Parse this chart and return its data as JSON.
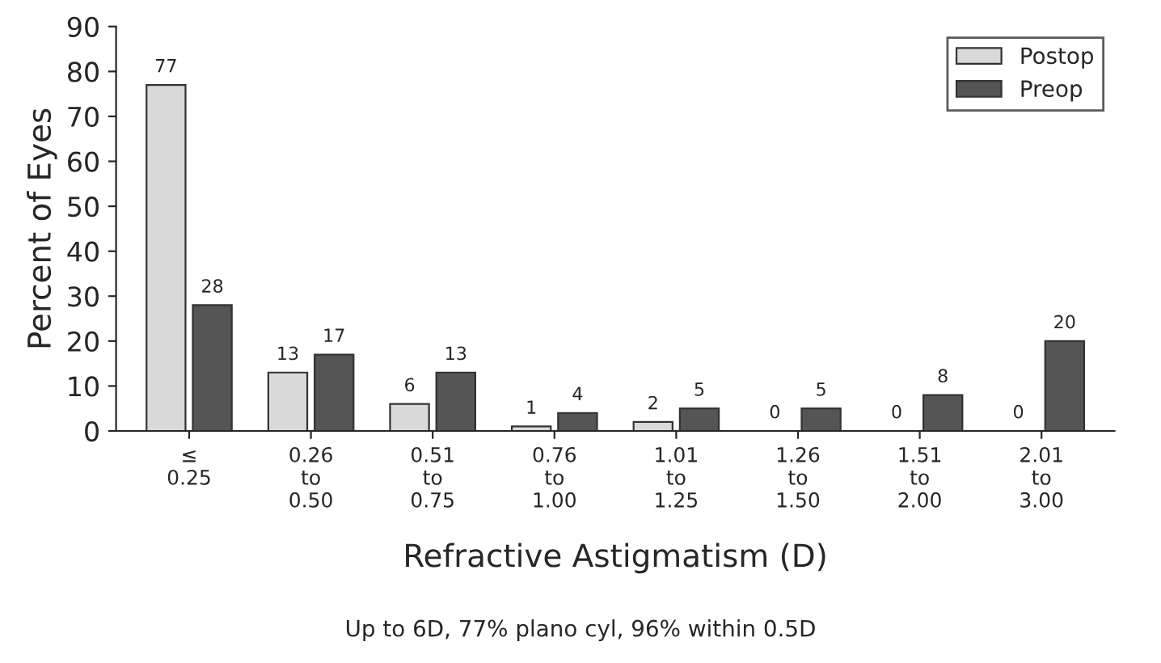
{
  "chart_data": {
    "type": "bar",
    "xlabel": "Refractive Astigmatism (D)",
    "ylabel": "Percent of Eyes",
    "categories": [
      "≤\n0.25",
      "0.26\nto\n0.50",
      "0.51\nto\n0.75",
      "0.76\nto\n1.00",
      "1.01\nto\n1.25",
      "1.26\nto\n1.50",
      "1.51\nto\n2.00",
      "2.01\nto\n3.00"
    ],
    "series": [
      {
        "name": "Postop",
        "color": "#d9d9d9",
        "values": [
          77,
          13,
          6,
          1,
          2,
          0,
          0,
          0
        ]
      },
      {
        "name": "Preop",
        "color": "#555555",
        "values": [
          28,
          17,
          13,
          4,
          5,
          5,
          8,
          20
        ]
      }
    ],
    "ylim": [
      0,
      90
    ],
    "yticks": [
      0,
      10,
      20,
      30,
      40,
      50,
      60,
      70,
      80,
      90
    ],
    "data_labels": true,
    "grid": false,
    "legend": "top right",
    "annotations": [
      "Up to 6D, 77% plano cyl, 96% within 0.5D"
    ]
  }
}
